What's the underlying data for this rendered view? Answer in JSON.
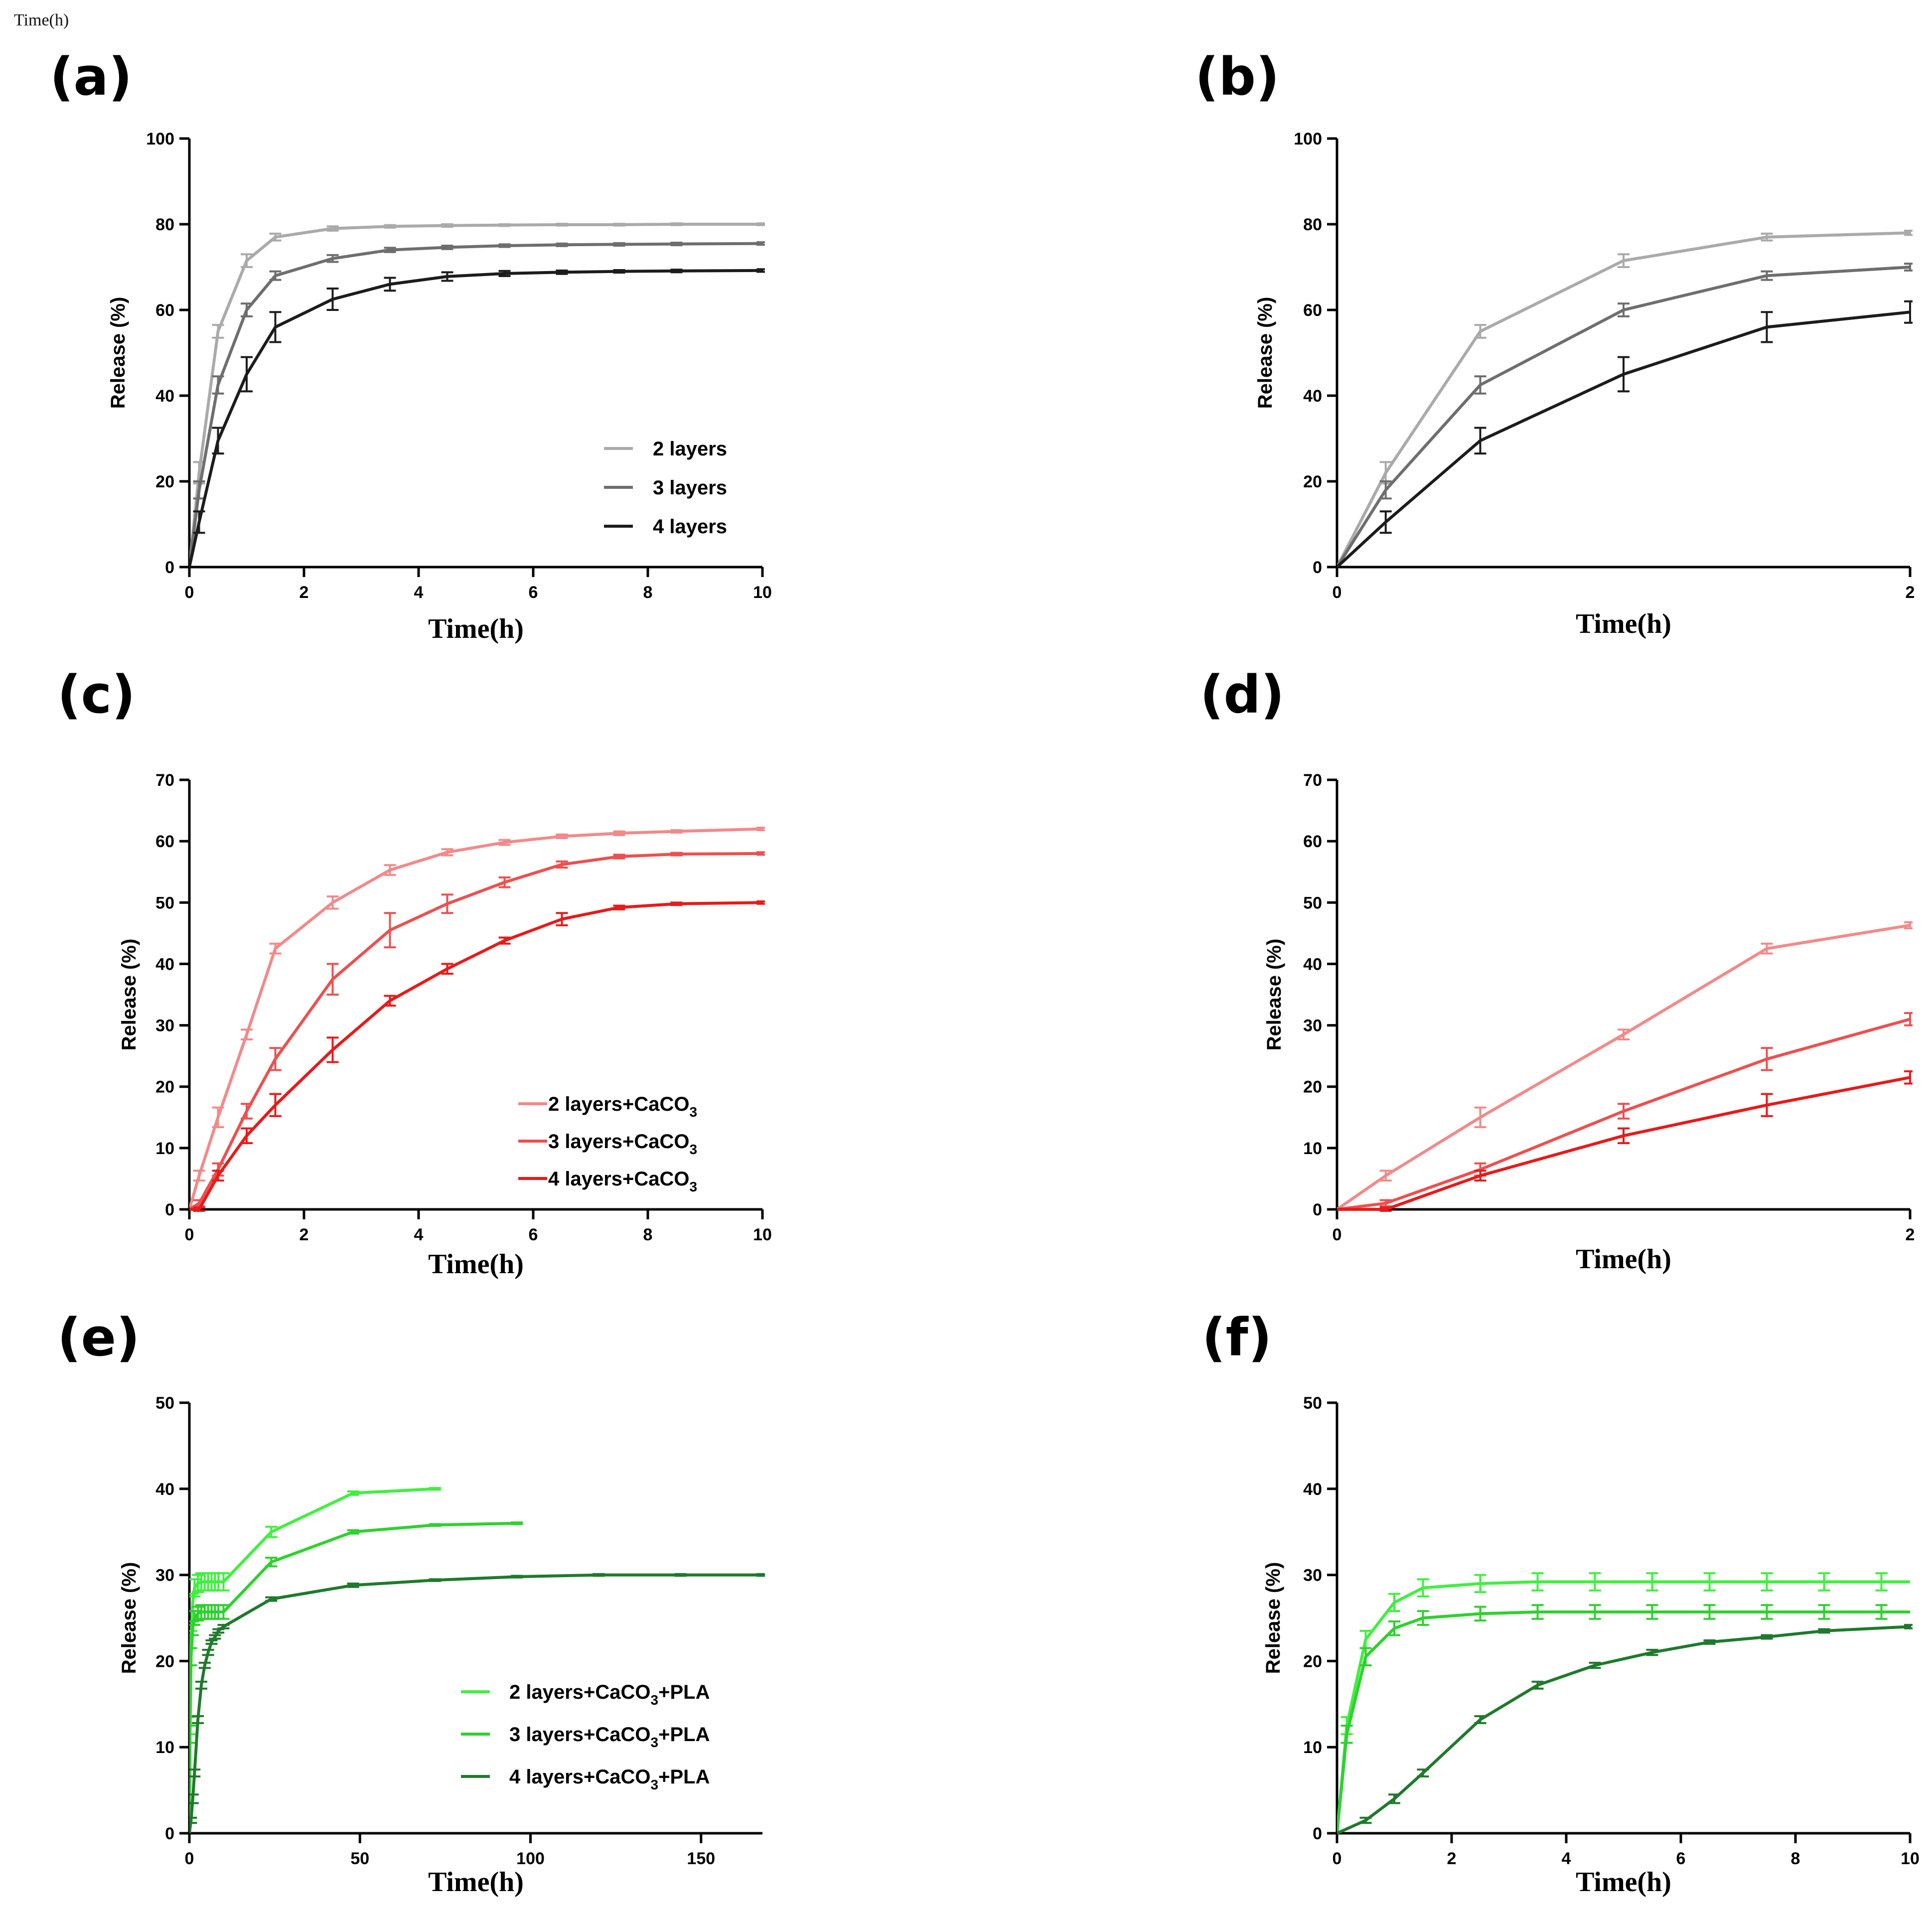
{
  "caption": "Time(h)",
  "colors": {
    "gray": [
      "#aaaaaa",
      "#6e6e6e",
      "#1c1c1c"
    ],
    "red": [
      "#f28a8a",
      "#ec5050",
      "#e81a1a"
    ],
    "green": [
      "#3ff03f",
      "#2ed12e",
      "#1f7a2c"
    ]
  },
  "chart_data": [
    {
      "id": "a",
      "panel_label": "(a)",
      "type": "line",
      "palette": "gray",
      "xlabel": "Time(h)",
      "ylabel": "Release (%)",
      "xlim": [
        0,
        10
      ],
      "ylim": [
        0,
        100
      ],
      "xticks": [
        0,
        2,
        4,
        6,
        8,
        10
      ],
      "yticks": [
        0,
        20,
        40,
        60,
        80,
        100
      ],
      "legend_position": "bottom-right",
      "series": [
        {
          "name": "2 layers",
          "legend": [
            "2 layers",
            "",
            ""
          ],
          "x": [
            0,
            0.17,
            0.5,
            1,
            1.5,
            2.5,
            3.5,
            4.5,
            5.5,
            6.5,
            7.5,
            8.5,
            10
          ],
          "y": [
            0,
            22,
            55,
            71.5,
            77,
            79,
            79.5,
            79.7,
            79.8,
            79.9,
            79.9,
            80,
            80
          ],
          "err": [
            0,
            2.5,
            1.5,
            1.5,
            0.8,
            0.5,
            0.3,
            0.3,
            0.2,
            0.2,
            0.2,
            0.2,
            0.2
          ]
        },
        {
          "name": "3 layers",
          "legend": [
            "3 layers",
            "",
            ""
          ],
          "x": [
            0,
            0.17,
            0.5,
            1,
            1.5,
            2.5,
            3.5,
            4.5,
            5.5,
            6.5,
            7.5,
            8.5,
            10
          ],
          "y": [
            0,
            18,
            42.5,
            60,
            68,
            72,
            74,
            74.6,
            75,
            75.2,
            75.3,
            75.4,
            75.5
          ],
          "err": [
            0,
            2,
            2,
            1.5,
            1,
            0.8,
            0.5,
            0.4,
            0.3,
            0.3,
            0.3,
            0.3,
            0.3
          ]
        },
        {
          "name": "4 layers",
          "legend": [
            "4 layers",
            "",
            ""
          ],
          "x": [
            0,
            0.17,
            0.5,
            1,
            1.5,
            2.5,
            3.5,
            4.5,
            5.5,
            6.5,
            7.5,
            8.5,
            10
          ],
          "y": [
            0,
            10.5,
            29.5,
            45,
            56,
            62.5,
            66,
            67.8,
            68.5,
            68.8,
            69,
            69.1,
            69.2
          ],
          "err": [
            0,
            2.5,
            3,
            4,
            3.5,
            2.5,
            1.5,
            1,
            0.6,
            0.4,
            0.3,
            0.3,
            0.3
          ]
        }
      ]
    },
    {
      "id": "b",
      "panel_label": "(b)",
      "type": "line",
      "palette": "gray",
      "xlabel": "Time(h)",
      "ylabel": "Release (%)",
      "xlim": [
        0,
        2
      ],
      "ylim": [
        0,
        100
      ],
      "xticks": [
        0,
        2
      ],
      "yticks": [
        0,
        20,
        40,
        60,
        80,
        100
      ],
      "series": [
        {
          "name": "2 layers",
          "x": [
            0,
            0.17,
            0.5,
            1,
            1.5,
            2
          ],
          "y": [
            0,
            22,
            55,
            71.5,
            77,
            78
          ],
          "err": [
            0,
            2.5,
            1.5,
            1.5,
            0.8,
            0.5
          ]
        },
        {
          "name": "3 layers",
          "x": [
            0,
            0.17,
            0.5,
            1,
            1.5,
            2
          ],
          "y": [
            0,
            18,
            42.5,
            60,
            68,
            70
          ],
          "err": [
            0,
            2,
            2,
            1.5,
            1,
            0.8
          ]
        },
        {
          "name": "4 layers",
          "x": [
            0,
            0.17,
            0.5,
            1,
            1.5,
            2
          ],
          "y": [
            0,
            10.5,
            29.5,
            45,
            56,
            59.5
          ],
          "err": [
            0,
            2.5,
            3,
            4,
            3.5,
            2.5
          ]
        }
      ]
    },
    {
      "id": "c",
      "panel_label": "(c)",
      "type": "line",
      "palette": "red",
      "xlabel": "Time(h)",
      "ylabel": "Release (%)",
      "xlim": [
        0,
        10
      ],
      "ylim": [
        0,
        70
      ],
      "xticks": [
        0,
        2,
        4,
        6,
        8,
        10
      ],
      "yticks": [
        0,
        10,
        20,
        30,
        40,
        50,
        60,
        70
      ],
      "legend_position": "bottom-right",
      "series": [
        {
          "name": "2 layers+CaCO3",
          "legend": [
            "2 layers+CaCO",
            "3",
            ""
          ],
          "x": [
            0,
            0.17,
            0.5,
            1,
            1.5,
            2.5,
            3.5,
            4.5,
            5.5,
            6.5,
            7.5,
            8.5,
            10
          ],
          "y": [
            0,
            5.5,
            15,
            28.5,
            42.5,
            50,
            55.3,
            58.2,
            59.8,
            60.8,
            61.3,
            61.6,
            62
          ],
          "err": [
            0,
            0.8,
            1.6,
            0.8,
            0.8,
            1,
            0.8,
            0.5,
            0.4,
            0.3,
            0.3,
            0.2,
            0.2
          ]
        },
        {
          "name": "3 layers+CaCO3",
          "legend": [
            "3 layers+CaCO",
            "3",
            ""
          ],
          "x": [
            0,
            0.17,
            0.5,
            1,
            1.5,
            2.5,
            3.5,
            4.5,
            5.5,
            6.5,
            7.5,
            8.5,
            10
          ],
          "y": [
            0,
            1,
            6.5,
            16,
            24.5,
            37.5,
            45.5,
            49.8,
            53.3,
            56.2,
            57.5,
            57.9,
            58
          ],
          "err": [
            0,
            0.5,
            1,
            1.2,
            1.8,
            2.5,
            2.8,
            1.5,
            0.8,
            0.5,
            0.3,
            0.2,
            0.2
          ]
        },
        {
          "name": "4 layers+CaCO3",
          "legend": [
            "4 layers+CaCO",
            "3",
            ""
          ],
          "x": [
            0,
            0.17,
            0.5,
            1,
            1.5,
            2.5,
            3.5,
            4.5,
            5.5,
            6.5,
            7.5,
            8.5,
            10
          ],
          "y": [
            0,
            0,
            5.5,
            12,
            17,
            26,
            34,
            39.2,
            43.8,
            47.3,
            49.2,
            49.8,
            50
          ],
          "err": [
            0,
            0.3,
            0.8,
            1.2,
            1.8,
            2,
            0.8,
            0.8,
            0.5,
            1,
            0.3,
            0.2,
            0.2
          ]
        }
      ]
    },
    {
      "id": "d",
      "panel_label": "(d)",
      "type": "line",
      "palette": "red",
      "xlabel": "Time(h)",
      "ylabel": "Release (%)",
      "xlim": [
        0,
        2
      ],
      "ylim": [
        0,
        70
      ],
      "xticks": [
        0,
        2
      ],
      "yticks": [
        0,
        10,
        20,
        30,
        40,
        50,
        60,
        70
      ],
      "series": [
        {
          "name": "2 layers+CaCO3",
          "x": [
            0,
            0.17,
            0.5,
            1,
            1.5,
            2
          ],
          "y": [
            0,
            5.5,
            15,
            28.5,
            42.5,
            46.3
          ],
          "err": [
            0,
            0.8,
            1.6,
            0.8,
            0.8,
            0.5
          ]
        },
        {
          "name": "3 layers+CaCO3",
          "x": [
            0,
            0.17,
            0.5,
            1,
            1.5,
            2
          ],
          "y": [
            0,
            1,
            6.5,
            16,
            24.5,
            31
          ],
          "err": [
            0,
            0.5,
            1,
            1.2,
            1.8,
            1
          ]
        },
        {
          "name": "4 layers+CaCO3",
          "x": [
            0,
            0.17,
            0.5,
            1,
            1.5,
            2
          ],
          "y": [
            0,
            0,
            5.5,
            12,
            17,
            21.5
          ],
          "err": [
            0,
            0.3,
            0.8,
            1.2,
            1.8,
            1
          ]
        }
      ]
    },
    {
      "id": "e",
      "panel_label": "(e)",
      "type": "line",
      "palette": "green",
      "xlabel": "Time(h)",
      "ylabel": "Release (%)",
      "xlim": [
        0,
        168
      ],
      "ylim": [
        0,
        50
      ],
      "xticks": [
        0,
        50,
        100,
        150
      ],
      "yticks": [
        0,
        10,
        20,
        30,
        40,
        50
      ],
      "legend_position": "bottom-right",
      "series": [
        {
          "name": "2 layers+CaCO3+PLA",
          "legend": [
            "2 layers+CaCO",
            "3",
            "+PLA"
          ],
          "x": [
            0,
            0.17,
            0.5,
            1,
            1.5,
            2.5,
            3.5,
            4.5,
            5.5,
            6.5,
            7.5,
            8.5,
            10,
            24,
            48,
            72
          ],
          "y": [
            0,
            12.5,
            22.5,
            26.8,
            28.5,
            29,
            29.2,
            29.2,
            29.2,
            29.2,
            29.2,
            29.2,
            29.2,
            35,
            39.5,
            40
          ],
          "err": [
            0,
            1,
            1,
            1,
            1,
            1,
            1,
            1,
            1,
            1,
            1,
            1,
            1,
            0.6,
            0.2,
            0.1
          ]
        },
        {
          "name": "3 layers+CaCO3+PLA",
          "legend": [
            "3 layers+CaCO",
            "3",
            "+PLA"
          ],
          "x": [
            0,
            0.17,
            0.5,
            1,
            1.5,
            2.5,
            3.5,
            4.5,
            5.5,
            6.5,
            7.5,
            8.5,
            10,
            24,
            48,
            72,
            96
          ],
          "y": [
            0,
            11.5,
            20.5,
            23.8,
            25,
            25.5,
            25.7,
            25.7,
            25.7,
            25.7,
            25.7,
            25.7,
            25.7,
            31.5,
            35,
            35.8,
            36
          ],
          "err": [
            0,
            1,
            1,
            0.8,
            0.8,
            0.8,
            0.8,
            0.8,
            0.8,
            0.8,
            0.8,
            0.8,
            0.8,
            0.5,
            0.2,
            0.1,
            0.1
          ]
        },
        {
          "name": "4 layers+CaCO3+PLA",
          "legend": [
            "4 layers+CaCO",
            "3",
            "+PLA"
          ],
          "x": [
            0,
            0.5,
            1,
            1.5,
            2.5,
            3.5,
            4.5,
            5.5,
            6.5,
            7.5,
            8.5,
            10,
            24,
            48,
            72,
            96,
            120,
            144,
            168
          ],
          "y": [
            0,
            1.5,
            4,
            7,
            13.2,
            17.2,
            19.5,
            21,
            22.2,
            22.8,
            23.5,
            24,
            27.2,
            28.8,
            29.4,
            29.8,
            30,
            30,
            30
          ],
          "err": [
            0,
            0.3,
            0.5,
            0.4,
            0.4,
            0.4,
            0.3,
            0.3,
            0.2,
            0.2,
            0.2,
            0.2,
            0.2,
            0.2,
            0.1,
            0.1,
            0.1,
            0.1,
            0.1
          ]
        }
      ]
    },
    {
      "id": "f",
      "panel_label": "(f)",
      "type": "line",
      "palette": "green",
      "xlabel": "Time(h)",
      "ylabel": "Release (%)",
      "xlim": [
        0,
        10
      ],
      "ylim": [
        0,
        50
      ],
      "xticks": [
        0,
        2,
        4,
        6,
        8,
        10
      ],
      "yticks": [
        0,
        10,
        20,
        30,
        40,
        50
      ],
      "series": [
        {
          "name": "2 layers+CaCO3+PLA",
          "x": [
            0,
            0.17,
            0.5,
            1,
            1.5,
            2.5,
            3.5,
            4.5,
            5.5,
            6.5,
            7.5,
            8.5,
            9.5,
            10
          ],
          "y": [
            0,
            12.5,
            22.5,
            26.8,
            28.5,
            29,
            29.2,
            29.2,
            29.2,
            29.2,
            29.2,
            29.2,
            29.2,
            29.2
          ],
          "err": [
            0,
            1,
            1,
            1,
            1,
            1,
            1,
            1,
            1,
            1,
            1,
            1,
            1,
            0
          ]
        },
        {
          "name": "3 layers+CaCO3+PLA",
          "x": [
            0,
            0.17,
            0.5,
            1,
            1.5,
            2.5,
            3.5,
            4.5,
            5.5,
            6.5,
            7.5,
            8.5,
            9.5,
            10
          ],
          "y": [
            0,
            11.5,
            20.5,
            23.8,
            25,
            25.5,
            25.7,
            25.7,
            25.7,
            25.7,
            25.7,
            25.7,
            25.7,
            25.7
          ],
          "err": [
            0,
            1,
            1,
            0.8,
            0.8,
            0.8,
            0.8,
            0.8,
            0.8,
            0.8,
            0.8,
            0.8,
            0.8,
            0
          ]
        },
        {
          "name": "4 layers+CaCO3+PLA",
          "x": [
            0,
            0.5,
            1,
            1.5,
            2.5,
            3.5,
            4.5,
            5.5,
            6.5,
            7.5,
            8.5,
            10
          ],
          "y": [
            0,
            1.5,
            4,
            7,
            13.2,
            17.2,
            19.5,
            21,
            22.2,
            22.8,
            23.5,
            24
          ],
          "err": [
            0,
            0.3,
            0.5,
            0.4,
            0.4,
            0.4,
            0.3,
            0.3,
            0.2,
            0.2,
            0.2,
            0.2
          ]
        }
      ]
    }
  ]
}
